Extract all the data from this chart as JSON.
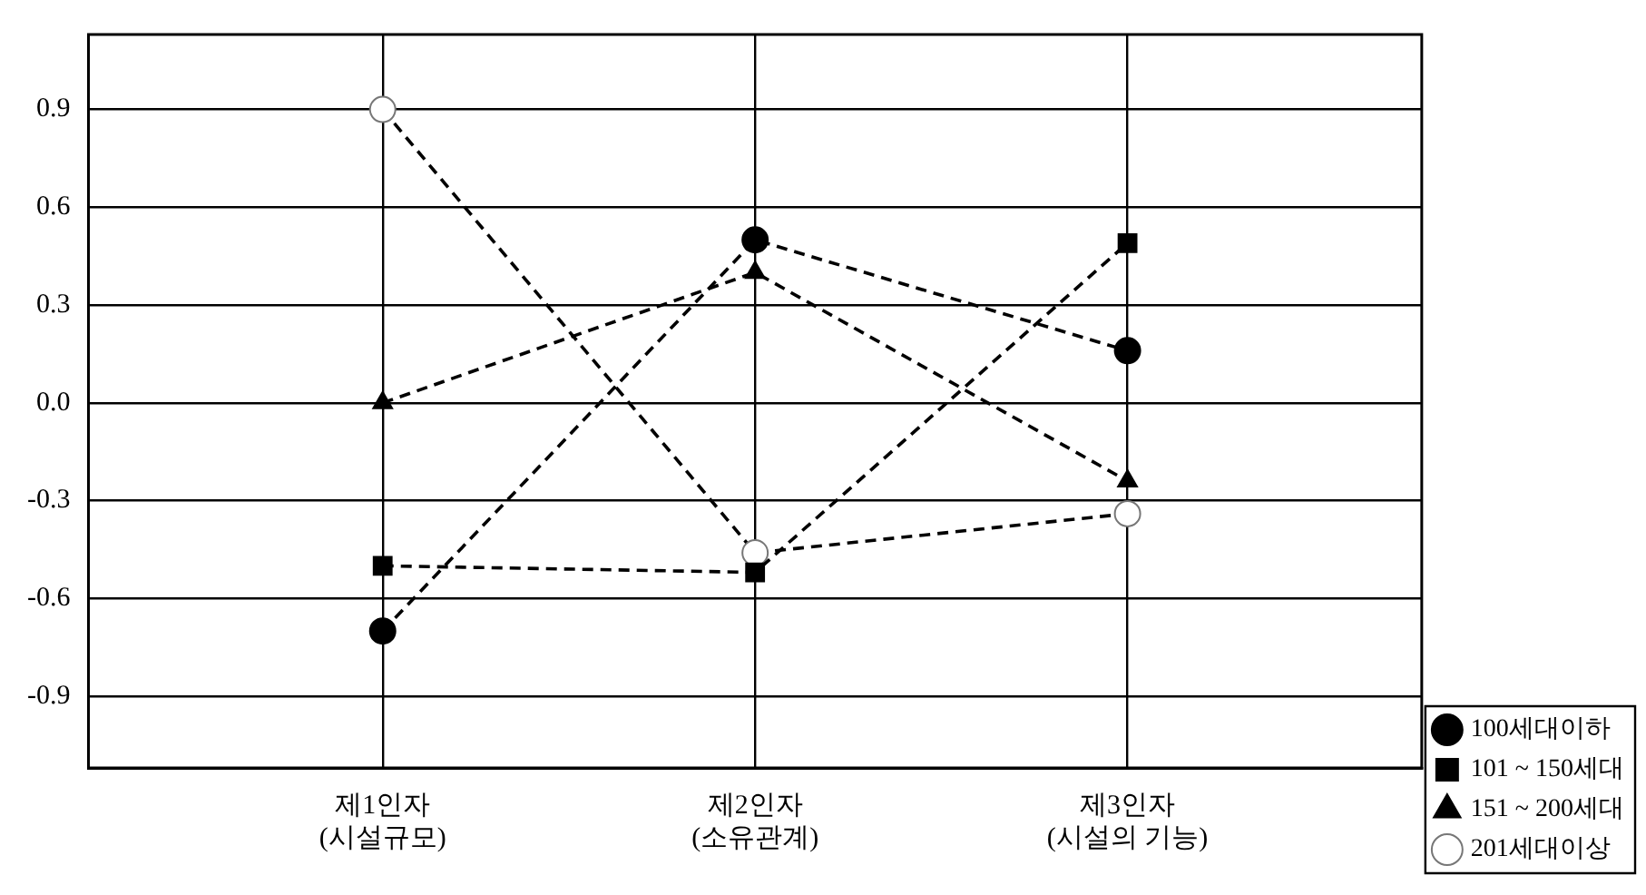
{
  "chart_data": {
    "type": "line",
    "categories": [
      "제1인자\n(시설규모)",
      "제2인자\n(소유관계)",
      "제3인자\n(시설의 기능)"
    ],
    "series": [
      {
        "name": "100세대이하",
        "color": "#000000",
        "marker": "circle",
        "values": [
          -0.7,
          0.5,
          0.16
        ]
      },
      {
        "name": "101 ~ 150세대",
        "color": "#000000",
        "marker": "square",
        "values": [
          -0.5,
          -0.52,
          0.49
        ]
      },
      {
        "name": "151 ~ 200세대",
        "color": "#000000",
        "marker": "triangle",
        "values": [
          0.0,
          0.4,
          -0.24
        ]
      },
      {
        "name": "201세대이상",
        "color": "#ffffff",
        "marker": "circle",
        "values": [
          0.9,
          -0.46,
          -0.34
        ]
      }
    ],
    "ylim": [
      -1.12,
      1.13
    ],
    "yticks": [
      -0.9,
      -0.6,
      -0.3,
      {
        "value": 0,
        "label": "0.0"
      },
      0.3,
      0.6,
      0.9
    ],
    "grid": true,
    "legend": "bottom right",
    "line_style": "dashed"
  }
}
